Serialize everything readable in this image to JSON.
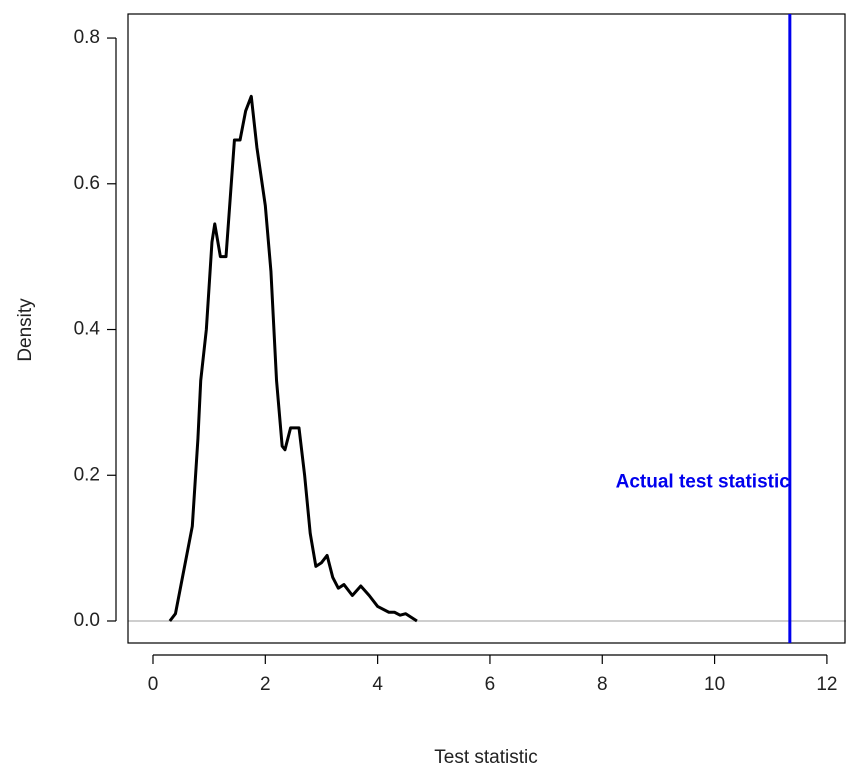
{
  "chart_data": {
    "type": "line",
    "xlabel": "Test statistic",
    "ylabel": "Density",
    "x": [
      0.3,
      0.4,
      0.5,
      0.6,
      0.7,
      0.8,
      0.85,
      0.95,
      1.05,
      1.1,
      1.2,
      1.3,
      1.45,
      1.55,
      1.65,
      1.75,
      1.85,
      2.0,
      2.1,
      2.2,
      2.3,
      2.35,
      2.45,
      2.6,
      2.7,
      2.8,
      2.9,
      3.0,
      3.1,
      3.2,
      3.3,
      3.4,
      3.55,
      3.7,
      3.85,
      4.0,
      4.2,
      4.3,
      4.4,
      4.5,
      4.6,
      4.7
    ],
    "series": [
      {
        "color": "#000000",
        "values": [
          0,
          0.01,
          0.05,
          0.09,
          0.13,
          0.25,
          0.33,
          0.4,
          0.52,
          0.545,
          0.5,
          0.5,
          0.66,
          0.66,
          0.7,
          0.72,
          0.65,
          0.57,
          0.48,
          0.33,
          0.24,
          0.235,
          0.265,
          0.265,
          0.2,
          0.12,
          0.075,
          0.08,
          0.09,
          0.06,
          0.045,
          0.05,
          0.035,
          0.048,
          0.035,
          0.02,
          0.012,
          0.012,
          0.008,
          0.01,
          0.005,
          0
        ]
      }
    ],
    "xlim": [
      -0.445,
      12.34
    ],
    "ylim": [
      -0.0302,
      0.833
    ],
    "xticks": [
      0,
      2,
      4,
      6,
      8,
      10,
      12
    ],
    "yticks": [
      {
        "value": 0,
        "label": "0.0"
      },
      0.2,
      0.4,
      0.6,
      0.8
    ],
    "hline": {
      "y": 0,
      "color": "#bebebe"
    },
    "vline": {
      "x": 11.34,
      "color": "#0000ee",
      "label": "Actual test statistic",
      "label_y": 0.19
    }
  }
}
